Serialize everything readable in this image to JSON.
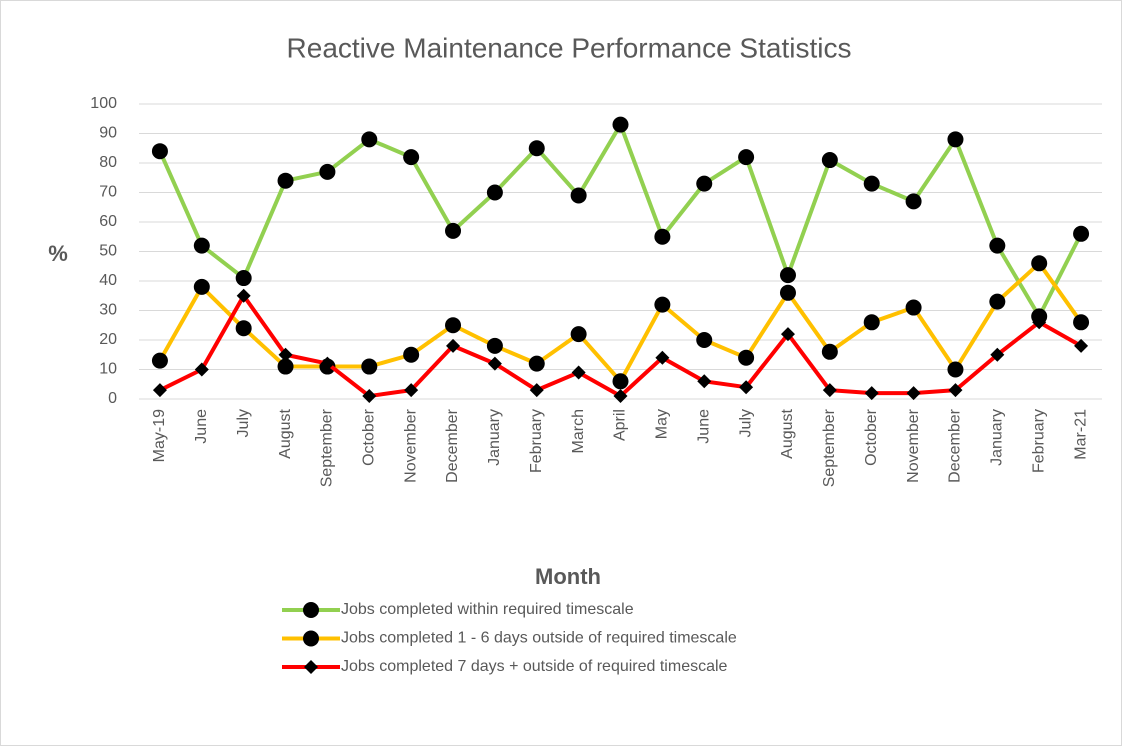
{
  "chart_data": {
    "type": "line",
    "title": "Reactive Maintenance Performance Statistics",
    "x_label": "Month",
    "y_label": "%",
    "categories": [
      "May-19",
      "June",
      "July",
      "August",
      "September",
      "October",
      "November",
      "December",
      "January",
      "February",
      "March",
      "April",
      "May",
      "June",
      "July",
      "August",
      "September",
      "October",
      "November",
      "December",
      "January",
      "February",
      "Mar-21"
    ],
    "series": [
      {
        "name": "Jobs completed within required timescale",
        "color": "#92d050",
        "marker": "circle",
        "values": [
          84,
          52,
          41,
          74,
          77,
          88,
          82,
          57,
          70,
          85,
          69,
          93,
          55,
          73,
          82,
          42,
          81,
          73,
          67,
          88,
          52,
          28,
          56
        ]
      },
      {
        "name": "Jobs completed 1 - 6 days outside of required timescale",
        "color": "#ffc000",
        "marker": "circle",
        "values": [
          13,
          38,
          24,
          11,
          11,
          11,
          15,
          25,
          18,
          12,
          22,
          6,
          32,
          20,
          14,
          36,
          16,
          26,
          31,
          10,
          33,
          46,
          26
        ]
      },
      {
        "name": "Jobs completed 7 days + outside of required timescale",
        "color": "#ff0000",
        "marker": "diamond",
        "values": [
          3,
          10,
          35,
          15,
          12,
          1,
          3,
          18,
          12,
          3,
          9,
          1,
          14,
          6,
          4,
          22,
          3,
          2,
          2,
          3,
          15,
          26,
          18
        ]
      }
    ],
    "ylim": [
      0,
      100
    ],
    "yticks": [
      0,
      10,
      20,
      30,
      40,
      50,
      60,
      70,
      80,
      90,
      100
    ],
    "grid": true,
    "legend": "bottom"
  }
}
